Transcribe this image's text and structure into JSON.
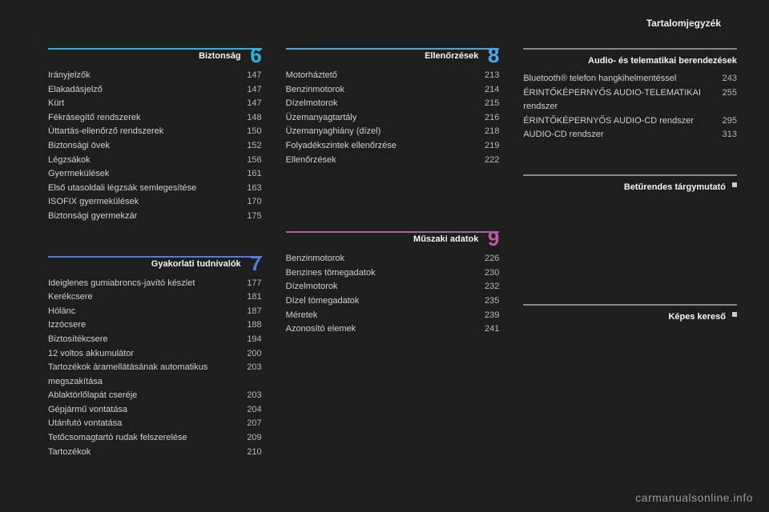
{
  "header": {
    "right": "Tartalomjegyzék"
  },
  "footer": {
    "link": "carmanualsonline.info"
  },
  "colors": {
    "s6": "#28b4dc",
    "s7": "#5a78d8",
    "s8": "#4aa8e8",
    "s9": "#b85aa8",
    "plain": "#888888"
  },
  "sections": {
    "s6": {
      "title": "Biztonság",
      "num": "6",
      "color_key": "s6",
      "items": [
        {
          "label": "Irányjelzők",
          "page": "147"
        },
        {
          "label": "Elakadásjelző",
          "page": "147"
        },
        {
          "label": "Kürt",
          "page": "147"
        },
        {
          "label": "Fékrásegítő rendszerek",
          "page": "148"
        },
        {
          "label": "Úttartás-ellenőrző rendszerek",
          "page": "150"
        },
        {
          "label": "Biztonsági övek",
          "page": "152"
        },
        {
          "label": "Légzsákok",
          "page": "156"
        },
        {
          "label": "Gyermekülések",
          "page": "161"
        },
        {
          "label": "Első utasoldali légzsák semlegesítése",
          "page": "163"
        },
        {
          "label": "ISOFIX gyermekülések",
          "page": "170"
        },
        {
          "label": "Biztonsági gyermekzár",
          "page": "175"
        }
      ]
    },
    "s7": {
      "title": "Gyakorlati tudnivalók",
      "num": "7",
      "color_key": "s7",
      "items": [
        {
          "label": "Ideiglenes gumiabroncs-javító készlet",
          "page": "177"
        },
        {
          "label": "Kerékcsere",
          "page": "181"
        },
        {
          "label": "Hólánc",
          "page": "187"
        },
        {
          "label": "Izzócsere",
          "page": "188"
        },
        {
          "label": "Biztosítékcsere",
          "page": "194"
        },
        {
          "label": "12 voltos akkumulátor",
          "page": "200"
        },
        {
          "label": "Tartozékok áramellátásának automatikus megszakítása",
          "page": "203"
        },
        {
          "label": "Ablaktörlőlapát cseréje",
          "page": "203"
        },
        {
          "label": "Gépjármű vontatása",
          "page": "204"
        },
        {
          "label": "Utánfutó vontatása",
          "page": "207"
        },
        {
          "label": "Tetőcsomagtartó rudak felszerelése",
          "page": "209"
        },
        {
          "label": "Tartozékok",
          "page": "210"
        }
      ]
    },
    "s8": {
      "title": "Ellenőrzések",
      "num": "8",
      "color_key": "s8",
      "items": [
        {
          "label": "Motorháztető",
          "page": "213"
        },
        {
          "label": "Benzinmotorok",
          "page": "214"
        },
        {
          "label": "Dízelmotorok",
          "page": "215"
        },
        {
          "label": "Üzemanyagtartály",
          "page": "216"
        },
        {
          "label": "Üzemanyaghiány (dízel)",
          "page": "218"
        },
        {
          "label": "Folyadékszintek ellenőrzése",
          "page": "219"
        },
        {
          "label": "Ellenőrzések",
          "page": "222"
        }
      ]
    },
    "s9": {
      "title": "Műszaki adatok",
      "num": "9",
      "color_key": "s9",
      "items": [
        {
          "label": "Benzinmotorok",
          "page": "226"
        },
        {
          "label": "Benzines tömegadatok",
          "page": "230"
        },
        {
          "label": "Dízelmotorok",
          "page": "232"
        },
        {
          "label": "Dízel tömegadatok",
          "page": "235"
        },
        {
          "label": "Méretek",
          "page": "239"
        },
        {
          "label": "Azonosító elemek",
          "page": "241"
        }
      ]
    },
    "audio": {
      "title": "Audio- és telematikai berendezések",
      "items": [
        {
          "label": "Bluetooth® telefon hangkihelmentéssel",
          "page": "243"
        },
        {
          "label": "ÉRINTŐKÉPERNYŐS AUDIO-TELEMATIKAI rendszer",
          "page": "255"
        },
        {
          "label": "ÉRINTŐKÉPERNYŐS AUDIO-CD rendszer",
          "page": "295"
        },
        {
          "label": "AUDIO-CD rendszer",
          "page": "313"
        }
      ]
    },
    "index": {
      "title": "Betűrendes tárgymutató"
    },
    "visual": {
      "title": "Képes kereső"
    }
  }
}
